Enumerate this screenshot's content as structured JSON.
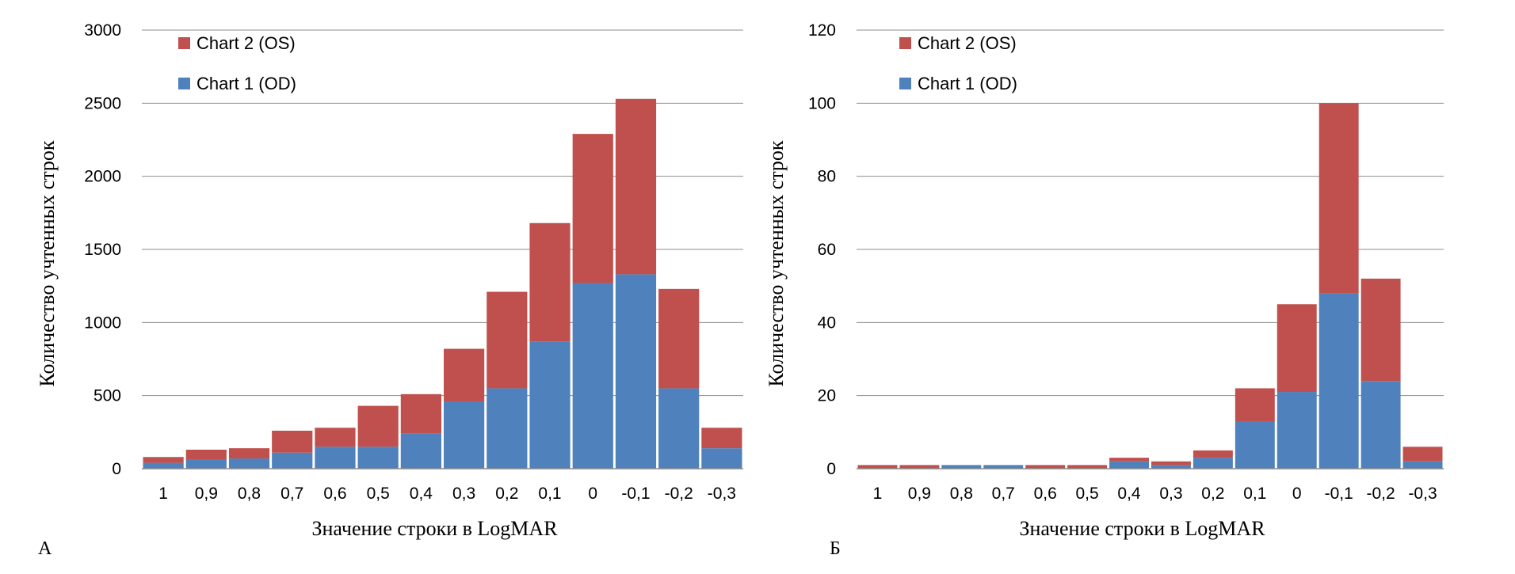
{
  "chart_data": [
    {
      "type": "bar",
      "stacked": true,
      "panel_label": "А",
      "categories": [
        "1",
        "0,9",
        "0,8",
        "0,7",
        "0,6",
        "0,5",
        "0,4",
        "0,3",
        "0,2",
        "0,1",
        "0",
        "-0,1",
        "-0,2",
        "-0,3"
      ],
      "series": [
        {
          "name": "Chart 1 (OD)",
          "color": "#4f81bd",
          "values": [
            40,
            60,
            70,
            110,
            150,
            150,
            240,
            460,
            550,
            870,
            1270,
            1330,
            550,
            140
          ]
        },
        {
          "name": "Chart 2 (OS)",
          "color": "#c0504d",
          "values": [
            40,
            70,
            70,
            150,
            130,
            280,
            270,
            360,
            660,
            810,
            1020,
            1200,
            680,
            140
          ]
        }
      ],
      "legend_order": [
        "Chart 2 (OS)",
        "Chart 1 (OD)"
      ],
      "legend_position": "top-left",
      "xlabel": "Значение строки в LogMAR",
      "ylabel": "Количество учтенных строк",
      "ylim": [
        0,
        3000
      ],
      "yticks": [
        0,
        500,
        1000,
        1500,
        2000,
        2500,
        3000
      ],
      "grid": true
    },
    {
      "type": "bar",
      "stacked": true,
      "panel_label": "Б",
      "categories": [
        "1",
        "0,9",
        "0,8",
        "0,7",
        "0,6",
        "0,5",
        "0,4",
        "0,3",
        "0,2",
        "0,1",
        "0",
        "-0,1",
        "-0,2",
        "-0,3"
      ],
      "series": [
        {
          "name": "Chart 1 (OD)",
          "color": "#4f81bd",
          "values": [
            0,
            0,
            1,
            1,
            0,
            0,
            2,
            1,
            3,
            13,
            21,
            48,
            24,
            2
          ]
        },
        {
          "name": "Chart 2 (OS)",
          "color": "#c0504d",
          "values": [
            1,
            1,
            0,
            0,
            1,
            1,
            1,
            1,
            2,
            9,
            24,
            52,
            28,
            4
          ]
        }
      ],
      "legend_order": [
        "Chart 2 (OS)",
        "Chart 1 (OD)"
      ],
      "legend_position": "top-left",
      "xlabel": "Значение строки в LogMAR",
      "ylabel": "Количество учтенных строк",
      "ylim": [
        0,
        120
      ],
      "yticks": [
        0,
        20,
        40,
        60,
        80,
        100,
        120
      ],
      "grid": true
    }
  ]
}
